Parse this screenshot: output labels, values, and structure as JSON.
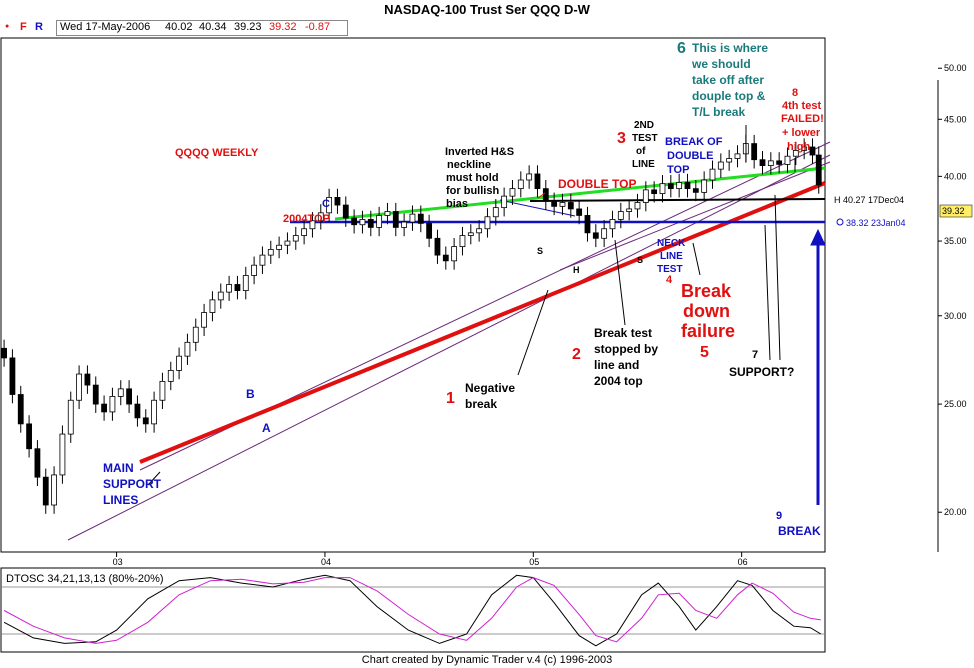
{
  "window": {
    "title": "NASDAQ-100 Trust Ser QQQ     D-W"
  },
  "toolbar": {
    "dot": "●",
    "f_label": "F",
    "r_label": "R",
    "date": "Wed 17-May-2006",
    "open": "40.02",
    "high": "40.34",
    "low": "39.23",
    "close": "39.32",
    "change": "-0.87"
  },
  "colors": {
    "up": "#ffffff",
    "down": "#000000",
    "red_trend": "#e01010",
    "green_line": "#22dd22",
    "blue_line": "#1010c0",
    "channel": "#6a2a7a",
    "osc1": "#000000",
    "osc2": "#d020d0"
  },
  "chart_data": {
    "type": "candlestick",
    "title": "NASDAQ-100 Trust Ser QQQ     D-W",
    "subtitle": "QQQQ WEEKLY",
    "y_scale": "log",
    "ylim": [
      18.5,
      53
    ],
    "y_ticks": [
      "50.00",
      "45.00",
      "40.00",
      "35.00",
      "30.00",
      "25.00",
      "20.00"
    ],
    "y_tick_values": [
      50,
      45,
      40,
      35,
      30,
      25,
      20
    ],
    "x_ticks": [
      "03",
      "04",
      "05",
      "06"
    ],
    "x_tick_values": [
      2003.0,
      2004.0,
      2005.0,
      2006.0
    ],
    "xlim": [
      2002.45,
      2006.4
    ],
    "price_labels": [
      {
        "text": "H 40.27  17Dec04",
        "value": 40.27
      },
      {
        "text": "38.32  23Jan04",
        "value": 38.32
      },
      {
        "text": "39.32",
        "value": 39.32
      }
    ],
    "weekly_closes": [
      {
        "x": 2002.46,
        "y": 27.5
      },
      {
        "x": 2002.5,
        "y": 25.5
      },
      {
        "x": 2002.54,
        "y": 24.0
      },
      {
        "x": 2002.58,
        "y": 22.8
      },
      {
        "x": 2002.62,
        "y": 21.5
      },
      {
        "x": 2002.66,
        "y": 20.3
      },
      {
        "x": 2002.7,
        "y": 21.6
      },
      {
        "x": 2002.74,
        "y": 23.5
      },
      {
        "x": 2002.78,
        "y": 25.2
      },
      {
        "x": 2002.82,
        "y": 26.6
      },
      {
        "x": 2002.86,
        "y": 26.0
      },
      {
        "x": 2002.9,
        "y": 25.0
      },
      {
        "x": 2002.94,
        "y": 24.6
      },
      {
        "x": 2002.98,
        "y": 25.4
      },
      {
        "x": 2003.02,
        "y": 25.8
      },
      {
        "x": 2003.06,
        "y": 25.0
      },
      {
        "x": 2003.1,
        "y": 24.3
      },
      {
        "x": 2003.14,
        "y": 24.0
      },
      {
        "x": 2003.18,
        "y": 25.2
      },
      {
        "x": 2003.22,
        "y": 26.2
      },
      {
        "x": 2003.26,
        "y": 26.8
      },
      {
        "x": 2003.3,
        "y": 27.6
      },
      {
        "x": 2003.34,
        "y": 28.4
      },
      {
        "x": 2003.38,
        "y": 29.3
      },
      {
        "x": 2003.42,
        "y": 30.2
      },
      {
        "x": 2003.46,
        "y": 31.0
      },
      {
        "x": 2003.5,
        "y": 31.5
      },
      {
        "x": 2003.54,
        "y": 32.0
      },
      {
        "x": 2003.58,
        "y": 31.6
      },
      {
        "x": 2003.62,
        "y": 32.6
      },
      {
        "x": 2003.66,
        "y": 33.3
      },
      {
        "x": 2003.7,
        "y": 34.0
      },
      {
        "x": 2003.74,
        "y": 34.4
      },
      {
        "x": 2003.78,
        "y": 34.7
      },
      {
        "x": 2003.82,
        "y": 35.0
      },
      {
        "x": 2003.86,
        "y": 35.4
      },
      {
        "x": 2003.9,
        "y": 35.9
      },
      {
        "x": 2003.94,
        "y": 36.5
      },
      {
        "x": 2003.98,
        "y": 37.1
      },
      {
        "x": 2004.02,
        "y": 38.3
      },
      {
        "x": 2004.06,
        "y": 37.7
      },
      {
        "x": 2004.1,
        "y": 36.7
      },
      {
        "x": 2004.14,
        "y": 36.2
      },
      {
        "x": 2004.18,
        "y": 36.6
      },
      {
        "x": 2004.22,
        "y": 36.0
      },
      {
        "x": 2004.26,
        "y": 36.9
      },
      {
        "x": 2004.3,
        "y": 37.2
      },
      {
        "x": 2004.34,
        "y": 36.0
      },
      {
        "x": 2004.38,
        "y": 36.4
      },
      {
        "x": 2004.42,
        "y": 37.0
      },
      {
        "x": 2004.46,
        "y": 36.3
      },
      {
        "x": 2004.5,
        "y": 35.2
      },
      {
        "x": 2004.54,
        "y": 34.0
      },
      {
        "x": 2004.58,
        "y": 33.6
      },
      {
        "x": 2004.62,
        "y": 34.6
      },
      {
        "x": 2004.66,
        "y": 35.4
      },
      {
        "x": 2004.7,
        "y": 35.6
      },
      {
        "x": 2004.74,
        "y": 35.9
      },
      {
        "x": 2004.78,
        "y": 36.8
      },
      {
        "x": 2004.82,
        "y": 37.5
      },
      {
        "x": 2004.86,
        "y": 38.4
      },
      {
        "x": 2004.9,
        "y": 39.0
      },
      {
        "x": 2004.94,
        "y": 39.7
      },
      {
        "x": 2004.98,
        "y": 40.2
      },
      {
        "x": 2005.02,
        "y": 39.0
      },
      {
        "x": 2005.06,
        "y": 38.0
      },
      {
        "x": 2005.1,
        "y": 37.6
      },
      {
        "x": 2005.14,
        "y": 37.9
      },
      {
        "x": 2005.18,
        "y": 37.4
      },
      {
        "x": 2005.22,
        "y": 36.9
      },
      {
        "x": 2005.26,
        "y": 35.6
      },
      {
        "x": 2005.3,
        "y": 35.2
      },
      {
        "x": 2005.34,
        "y": 35.9
      },
      {
        "x": 2005.38,
        "y": 36.6
      },
      {
        "x": 2005.42,
        "y": 37.2
      },
      {
        "x": 2005.46,
        "y": 37.4
      },
      {
        "x": 2005.5,
        "y": 37.9
      },
      {
        "x": 2005.54,
        "y": 38.9
      },
      {
        "x": 2005.58,
        "y": 38.6
      },
      {
        "x": 2005.62,
        "y": 39.4
      },
      {
        "x": 2005.66,
        "y": 39.0
      },
      {
        "x": 2005.7,
        "y": 39.5
      },
      {
        "x": 2005.74,
        "y": 39.0
      },
      {
        "x": 2005.78,
        "y": 38.7
      },
      {
        "x": 2005.82,
        "y": 39.7
      },
      {
        "x": 2005.86,
        "y": 40.6
      },
      {
        "x": 2005.9,
        "y": 41.2
      },
      {
        "x": 2005.94,
        "y": 41.5
      },
      {
        "x": 2005.98,
        "y": 41.9
      },
      {
        "x": 2006.02,
        "y": 42.8
      },
      {
        "x": 2006.06,
        "y": 41.4
      },
      {
        "x": 2006.1,
        "y": 40.9
      },
      {
        "x": 2006.14,
        "y": 41.3
      },
      {
        "x": 2006.18,
        "y": 41.0
      },
      {
        "x": 2006.22,
        "y": 41.7
      },
      {
        "x": 2006.26,
        "y": 42.2
      },
      {
        "x": 2006.3,
        "y": 42.5
      },
      {
        "x": 2006.34,
        "y": 41.8
      },
      {
        "x": 2006.37,
        "y": 39.3
      }
    ],
    "annotations": [
      {
        "text": "QQQQ WEEKLY",
        "color": "#e01010"
      },
      {
        "text": "C",
        "color": "#1010c0"
      },
      {
        "text": "2004TOP",
        "color": "#e01010"
      },
      {
        "text": "Inverted H&S",
        "color": "#000000"
      },
      {
        "text": "neckline",
        "color": "#000000"
      },
      {
        "text": "must hold",
        "color": "#000000"
      },
      {
        "text": "for bullish",
        "color": "#000000"
      },
      {
        "text": "bias",
        "color": "#000000"
      },
      {
        "text": "DOUBLE TOP",
        "color": "#e01010"
      },
      {
        "text": "2ND",
        "color": "#000000"
      },
      {
        "text": "TEST",
        "color": "#000000"
      },
      {
        "text": "of",
        "color": "#000000"
      },
      {
        "text": "LINE",
        "color": "#000000"
      },
      {
        "text": "3",
        "color": "#e01010"
      },
      {
        "text": "BREAK OF",
        "color": "#1010c0"
      },
      {
        "text": "DOUBLE",
        "color": "#1010c0"
      },
      {
        "text": "TOP",
        "color": "#1010c0"
      },
      {
        "text": "6",
        "color": "#1a7a7a"
      },
      {
        "text": "This is where",
        "color": "#1a7a7a"
      },
      {
        "text": "we should",
        "color": "#1a7a7a"
      },
      {
        "text": "take off after",
        "color": "#1a7a7a"
      },
      {
        "text": "douple top &",
        "color": "#1a7a7a"
      },
      {
        "text": "T/L break",
        "color": "#1a7a7a"
      },
      {
        "text": "8",
        "color": "#e01010"
      },
      {
        "text": "4th test",
        "color": "#e01010"
      },
      {
        "text": "FAILED!",
        "color": "#e01010"
      },
      {
        "text": "+ lower",
        "color": "#e01010"
      },
      {
        "text": "high",
        "color": "#e01010"
      },
      {
        "text": "S",
        "color": "#000000"
      },
      {
        "text": "H",
        "color": "#000000"
      },
      {
        "text": "S",
        "color": "#000000"
      },
      {
        "text": "NECK",
        "color": "#1010c0"
      },
      {
        "text": "LINE",
        "color": "#1010c0"
      },
      {
        "text": "TEST",
        "color": "#1010c0"
      },
      {
        "text": "4",
        "color": "#e01010"
      },
      {
        "text": "Break",
        "color": "#e01010"
      },
      {
        "text": "down",
        "color": "#e01010"
      },
      {
        "text": "failure",
        "color": "#e01010"
      },
      {
        "text": "5",
        "color": "#e01010"
      },
      {
        "text": "Break test",
        "color": "#000000"
      },
      {
        "text": "stopped by",
        "color": "#000000"
      },
      {
        "text": "line and",
        "color": "#000000"
      },
      {
        "text": "2004 top",
        "color": "#000000"
      },
      {
        "text": "2",
        "color": "#e01010"
      },
      {
        "text": "7",
        "color": "#000000"
      },
      {
        "text": "SUPPORT?",
        "color": "#000000"
      },
      {
        "text": "1",
        "color": "#e01010"
      },
      {
        "text": "Negative",
        "color": "#000000"
      },
      {
        "text": "break",
        "color": "#000000"
      },
      {
        "text": "B",
        "color": "#1010c0"
      },
      {
        "text": "A",
        "color": "#1010c0"
      },
      {
        "text": "MAIN",
        "color": "#1010c0"
      },
      {
        "text": "SUPPORT",
        "color": "#1010c0"
      },
      {
        "text": "LINES",
        "color": "#1010c0"
      },
      {
        "text": "9",
        "color": "#1010c0"
      },
      {
        "text": "BREAK",
        "color": "#1010c0"
      }
    ],
    "oscillator": {
      "label": "DTOSC 34,21,13,13 (80%-20%)",
      "levels": [
        80,
        20
      ],
      "fast": [
        {
          "x": 2002.46,
          "y": 35
        },
        {
          "x": 2002.6,
          "y": 15
        },
        {
          "x": 2002.75,
          "y": 8
        },
        {
          "x": 2002.9,
          "y": 10
        },
        {
          "x": 2003.0,
          "y": 25
        },
        {
          "x": 2003.15,
          "y": 65
        },
        {
          "x": 2003.3,
          "y": 88
        },
        {
          "x": 2003.45,
          "y": 92
        },
        {
          "x": 2003.6,
          "y": 85
        },
        {
          "x": 2003.75,
          "y": 80
        },
        {
          "x": 2003.9,
          "y": 90
        },
        {
          "x": 2004.0,
          "y": 95
        },
        {
          "x": 2004.12,
          "y": 88
        },
        {
          "x": 2004.25,
          "y": 55
        },
        {
          "x": 2004.4,
          "y": 25
        },
        {
          "x": 2004.55,
          "y": 8
        },
        {
          "x": 2004.68,
          "y": 20
        },
        {
          "x": 2004.8,
          "y": 70
        },
        {
          "x": 2004.92,
          "y": 95
        },
        {
          "x": 2005.0,
          "y": 92
        },
        {
          "x": 2005.1,
          "y": 60
        },
        {
          "x": 2005.22,
          "y": 18
        },
        {
          "x": 2005.3,
          "y": 5
        },
        {
          "x": 2005.4,
          "y": 20
        },
        {
          "x": 2005.52,
          "y": 70
        },
        {
          "x": 2005.6,
          "y": 85
        },
        {
          "x": 2005.7,
          "y": 55
        },
        {
          "x": 2005.78,
          "y": 25
        },
        {
          "x": 2005.88,
          "y": 55
        },
        {
          "x": 2005.98,
          "y": 88
        },
        {
          "x": 2006.05,
          "y": 82
        },
        {
          "x": 2006.15,
          "y": 50
        },
        {
          "x": 2006.25,
          "y": 30
        },
        {
          "x": 2006.33,
          "y": 28
        },
        {
          "x": 2006.38,
          "y": 20
        }
      ],
      "slow": [
        {
          "x": 2002.46,
          "y": 50
        },
        {
          "x": 2002.6,
          "y": 30
        },
        {
          "x": 2002.75,
          "y": 15
        },
        {
          "x": 2002.9,
          "y": 8
        },
        {
          "x": 2003.0,
          "y": 12
        },
        {
          "x": 2003.15,
          "y": 35
        },
        {
          "x": 2003.3,
          "y": 70
        },
        {
          "x": 2003.45,
          "y": 88
        },
        {
          "x": 2003.6,
          "y": 90
        },
        {
          "x": 2003.75,
          "y": 84
        },
        {
          "x": 2003.9,
          "y": 86
        },
        {
          "x": 2004.0,
          "y": 92
        },
        {
          "x": 2004.12,
          "y": 92
        },
        {
          "x": 2004.25,
          "y": 75
        },
        {
          "x": 2004.4,
          "y": 45
        },
        {
          "x": 2004.55,
          "y": 20
        },
        {
          "x": 2004.68,
          "y": 12
        },
        {
          "x": 2004.8,
          "y": 40
        },
        {
          "x": 2004.92,
          "y": 80
        },
        {
          "x": 2005.0,
          "y": 92
        },
        {
          "x": 2005.1,
          "y": 82
        },
        {
          "x": 2005.22,
          "y": 45
        },
        {
          "x": 2005.3,
          "y": 18
        },
        {
          "x": 2005.4,
          "y": 10
        },
        {
          "x": 2005.52,
          "y": 40
        },
        {
          "x": 2005.6,
          "y": 70
        },
        {
          "x": 2005.7,
          "y": 72
        },
        {
          "x": 2005.78,
          "y": 50
        },
        {
          "x": 2005.88,
          "y": 40
        },
        {
          "x": 2005.98,
          "y": 70
        },
        {
          "x": 2006.05,
          "y": 85
        },
        {
          "x": 2006.15,
          "y": 72
        },
        {
          "x": 2006.25,
          "y": 48
        },
        {
          "x": 2006.33,
          "y": 40
        },
        {
          "x": 2006.38,
          "y": 38
        }
      ]
    }
  },
  "footer": {
    "text": "Chart created by Dynamic Trader v.4  (c) 1996-2003"
  }
}
